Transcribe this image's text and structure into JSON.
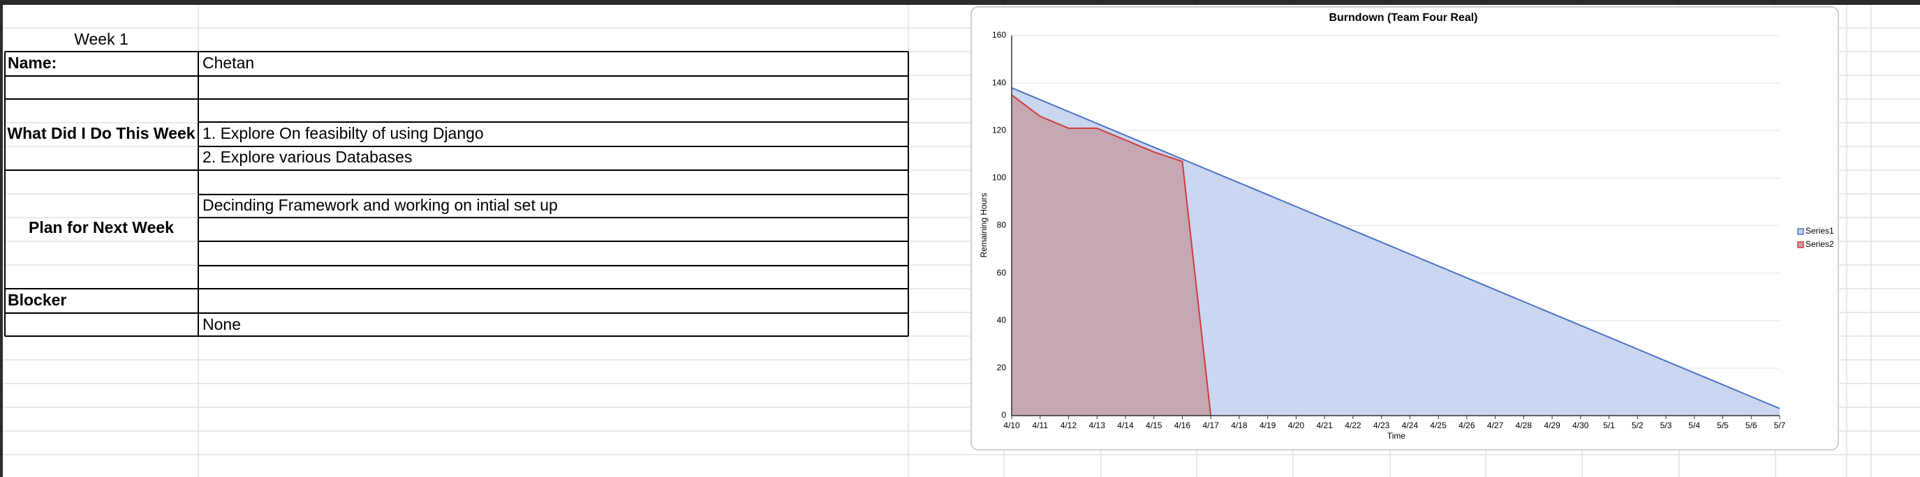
{
  "table": {
    "heading": "Week 1",
    "name_label": "Name:",
    "name": "Chetan",
    "done_label": "What Did I Do This Week",
    "done": [
      "1. Explore On feasibilty of using Django",
      "2. Explore various Databases"
    ],
    "plan_label": "Plan for Next Week",
    "plan": [
      "Decinding Framework and working on intial set up"
    ],
    "blocker_label": "Blocker",
    "blocker": "None"
  },
  "chart_data": {
    "type": "area",
    "title": "Burndown (Team Four Real)",
    "x_label": "Time",
    "y_label": "Remaining Hours",
    "categories": [
      "4/10",
      "4/11",
      "4/12",
      "4/13",
      "4/14",
      "4/15",
      "4/16",
      "4/17",
      "4/18",
      "4/19",
      "4/20",
      "4/21",
      "4/22",
      "4/23",
      "4/24",
      "4/25",
      "4/26",
      "4/27",
      "4/28",
      "4/29",
      "4/30",
      "5/1",
      "5/2",
      "5/3",
      "5/4",
      "5/5",
      "5/6",
      "5/7"
    ],
    "series": [
      {
        "name": "Series1",
        "color": "#4a72c4",
        "fill": "#c5d2ee",
        "values": [
          138,
          133,
          128,
          123,
          118,
          113,
          108,
          103,
          98,
          93,
          88,
          83,
          78,
          73,
          68,
          63,
          58,
          53,
          48,
          43,
          38,
          33,
          28,
          23,
          18,
          13,
          8,
          3
        ]
      },
      {
        "name": "Series2",
        "color": "#d03a3a",
        "fill": "#c4a3ad",
        "values": [
          135,
          126,
          121,
          121,
          116,
          111,
          107,
          0,
          null,
          null,
          null,
          null,
          null,
          null,
          null,
          null,
          null,
          null,
          null,
          null,
          null,
          null,
          null,
          null,
          null,
          null,
          null,
          null
        ]
      }
    ],
    "ylim": [
      0,
      160
    ],
    "yticks": [
      0,
      20,
      40,
      60,
      80,
      100,
      120,
      140,
      160
    ],
    "grid": true,
    "legend": "right"
  }
}
